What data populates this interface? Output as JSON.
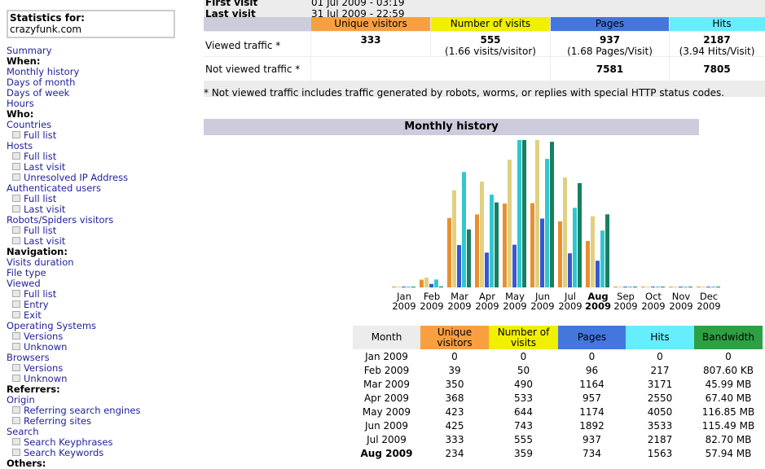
{
  "stats_for": {
    "label": "Statistics for:",
    "domain": "crazyfunk.com"
  },
  "menu": [
    {
      "t": "link",
      "label": "Summary"
    },
    {
      "t": "h",
      "label": "When:"
    },
    {
      "t": "link",
      "label": "Monthly history"
    },
    {
      "t": "link",
      "label": "Days of month"
    },
    {
      "t": "link",
      "label": "Days of week"
    },
    {
      "t": "link",
      "label": "Hours"
    },
    {
      "t": "h",
      "label": "Who:"
    },
    {
      "t": "link",
      "label": "Countries"
    },
    {
      "t": "sub",
      "label": "Full list"
    },
    {
      "t": "link",
      "label": "Hosts"
    },
    {
      "t": "sub",
      "label": "Full list"
    },
    {
      "t": "sub",
      "label": "Last visit"
    },
    {
      "t": "sub",
      "label": "Unresolved IP Address"
    },
    {
      "t": "link",
      "label": "Authenticated users"
    },
    {
      "t": "sub",
      "label": "Full list"
    },
    {
      "t": "sub",
      "label": "Last visit"
    },
    {
      "t": "link",
      "label": "Robots/Spiders visitors"
    },
    {
      "t": "sub",
      "label": "Full list"
    },
    {
      "t": "sub",
      "label": "Last visit"
    },
    {
      "t": "h",
      "label": "Navigation:"
    },
    {
      "t": "link",
      "label": "Visits duration"
    },
    {
      "t": "link",
      "label": "File type"
    },
    {
      "t": "link",
      "label": "Viewed"
    },
    {
      "t": "sub",
      "label": "Full list"
    },
    {
      "t": "sub",
      "label": "Entry"
    },
    {
      "t": "sub",
      "label": "Exit"
    },
    {
      "t": "link",
      "label": "Operating Systems"
    },
    {
      "t": "sub",
      "label": "Versions"
    },
    {
      "t": "sub",
      "label": "Unknown"
    },
    {
      "t": "link",
      "label": "Browsers"
    },
    {
      "t": "sub",
      "label": "Versions"
    },
    {
      "t": "sub",
      "label": "Unknown"
    },
    {
      "t": "h",
      "label": "Referrers:"
    },
    {
      "t": "link",
      "label": "Origin"
    },
    {
      "t": "sub",
      "label": "Referring search engines"
    },
    {
      "t": "sub",
      "label": "Referring sites"
    },
    {
      "t": "link",
      "label": "Search"
    },
    {
      "t": "sub",
      "label": "Search Keyphrases"
    },
    {
      "t": "sub",
      "label": "Search Keywords"
    },
    {
      "t": "h",
      "label": "Others:"
    }
  ],
  "summary": {
    "first_visit_label": "First visit",
    "first_visit": "01 Jul 2009 - 03:19",
    "last_visit_label": "Last visit",
    "last_visit": "31 Jul 2009 - 22:59",
    "headers": [
      "Unique visitors",
      "Number of visits",
      "Pages",
      "Hits"
    ],
    "viewed_label": "Viewed traffic *",
    "viewed": {
      "unique": "333",
      "visits": "555",
      "visits_sub": "(1.66 visits/visitor)",
      "pages": "937",
      "pages_sub": "(1.68 Pages/Visit)",
      "hits": "2187",
      "hits_sub": "(3.94 Hits/Visit)"
    },
    "not_viewed_label": "Not viewed traffic *",
    "not_viewed": {
      "pages": "7581",
      "hits": "7805"
    },
    "note": "* Not viewed traffic includes traffic generated by robots, worms, or replies with special HTTP status codes."
  },
  "colors": {
    "unique": "#f8a040",
    "visits": "#f0f000",
    "pages": "#4477dd",
    "hits": "#66eeff",
    "bandwidth": "#2ea044",
    "bar_unique": "#e89030",
    "bar_visits": "#e0d080",
    "bar_pages": "#3858d0",
    "bar_hits": "#30c8d0",
    "bar_bw": "#188060"
  },
  "monthly_title": "Monthly history",
  "chart_data": {
    "type": "bar",
    "title": "Monthly history",
    "categories": [
      "Jan",
      "Feb",
      "Mar",
      "Apr",
      "May",
      "Jun",
      "Jul",
      "Aug",
      "Sep",
      "Oct",
      "Nov",
      "Dec"
    ],
    "year": "2009",
    "current_month": "Aug",
    "series": [
      {
        "name": "Unique visitors",
        "values": [
          0,
          39,
          350,
          368,
          423,
          425,
          333,
          234,
          0,
          0,
          0,
          0
        ]
      },
      {
        "name": "Number of visits",
        "values": [
          0,
          50,
          490,
          533,
          644,
          743,
          555,
          359,
          0,
          0,
          0,
          0
        ]
      },
      {
        "name": "Pages",
        "values": [
          0,
          96,
          1164,
          957,
          1174,
          1892,
          937,
          734,
          0,
          0,
          0,
          0
        ]
      },
      {
        "name": "Hits",
        "values": [
          0,
          217,
          3171,
          2550,
          4050,
          3533,
          2187,
          1563,
          0,
          0,
          0,
          0
        ]
      },
      {
        "name": "Bandwidth (MB)",
        "values": [
          0,
          0.79,
          45.99,
          67.4,
          116.85,
          115.49,
          82.7,
          57.94,
          0,
          0,
          0,
          0
        ]
      }
    ]
  },
  "table": {
    "headers": [
      "Month",
      "Unique visitors",
      "Number of visits",
      "Pages",
      "Hits",
      "Bandwidth"
    ],
    "rows": [
      [
        "Jan 2009",
        "0",
        "0",
        "0",
        "0",
        "0"
      ],
      [
        "Feb 2009",
        "39",
        "50",
        "96",
        "217",
        "807.60 KB"
      ],
      [
        "Mar 2009",
        "350",
        "490",
        "1164",
        "3171",
        "45.99 MB"
      ],
      [
        "Apr 2009",
        "368",
        "533",
        "957",
        "2550",
        "67.40 MB"
      ],
      [
        "May 2009",
        "423",
        "644",
        "1174",
        "4050",
        "116.85 MB"
      ],
      [
        "Jun 2009",
        "425",
        "743",
        "1892",
        "3533",
        "115.49 MB"
      ],
      [
        "Jul 2009",
        "333",
        "555",
        "937",
        "2187",
        "82.70 MB"
      ],
      [
        "Aug 2009",
        "234",
        "359",
        "734",
        "1563",
        "57.94 MB"
      ]
    ]
  }
}
